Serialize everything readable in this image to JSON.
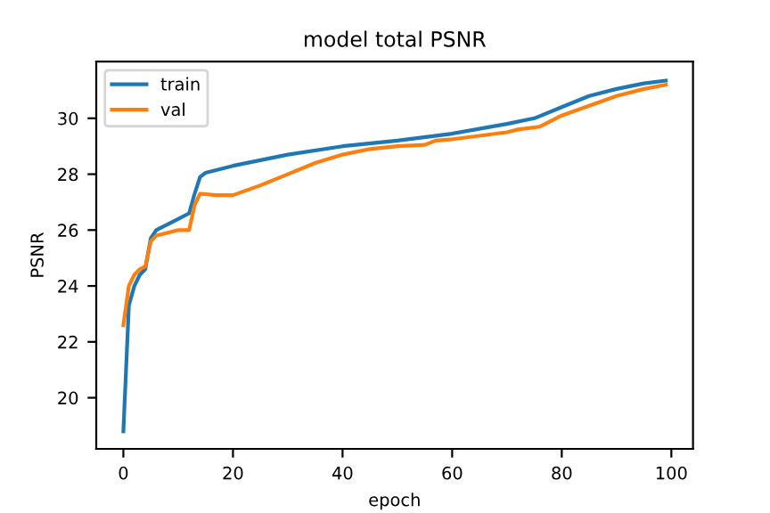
{
  "chart_data": {
    "type": "line",
    "title": "model total PSNR",
    "xlabel": "epoch",
    "ylabel": "PSNR",
    "xlim": [
      -4.95,
      103.95
    ],
    "ylim": [
      18.17,
      32.03
    ],
    "xticks": [
      0,
      20,
      40,
      60,
      80,
      100
    ],
    "yticks": [
      20,
      22,
      24,
      26,
      28,
      30
    ],
    "legend": "top left",
    "grid": false,
    "series": [
      {
        "name": "train",
        "color": "#1f77b4",
        "x": [
          0,
          1,
          2,
          3,
          4,
          5,
          6,
          8,
          10,
          12,
          13,
          14,
          15,
          20,
          30,
          40,
          50,
          60,
          70,
          75,
          80,
          85,
          90,
          95,
          99
        ],
        "values": [
          18.8,
          23.3,
          24.0,
          24.4,
          24.6,
          25.7,
          26.0,
          26.2,
          26.4,
          26.6,
          27.3,
          27.9,
          28.05,
          28.3,
          28.7,
          29.0,
          29.2,
          29.45,
          29.8,
          30.0,
          30.4,
          30.8,
          31.05,
          31.25,
          31.35
        ]
      },
      {
        "name": "val",
        "color": "#ff7f0e",
        "x": [
          0,
          1,
          2,
          3,
          4,
          5,
          6,
          8,
          10,
          12,
          13,
          14,
          17,
          20,
          25,
          30,
          35,
          40,
          45,
          50,
          55,
          57,
          60,
          70,
          72,
          76,
          80,
          85,
          90,
          95,
          99
        ],
        "values": [
          22.6,
          24.0,
          24.4,
          24.6,
          24.7,
          25.6,
          25.8,
          25.9,
          26.0,
          26.0,
          26.9,
          27.3,
          27.25,
          27.25,
          27.6,
          28.0,
          28.4,
          28.7,
          28.9,
          29.0,
          29.05,
          29.2,
          29.25,
          29.5,
          29.6,
          29.7,
          30.1,
          30.45,
          30.8,
          31.05,
          31.2
        ]
      }
    ]
  }
}
